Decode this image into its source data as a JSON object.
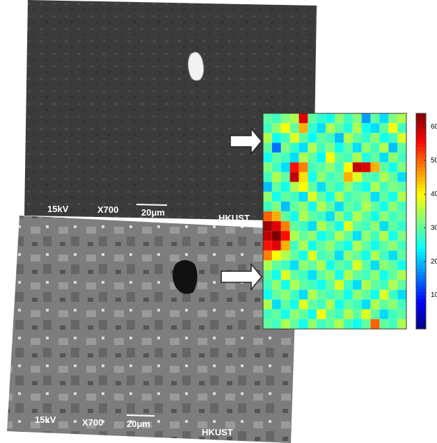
{
  "top_image": {
    "voltage": "15kV",
    "magnification": "X700",
    "scale_bar": "20μm",
    "institution": "HKUST"
  },
  "bottom_image": {
    "voltage": "15kV",
    "magnification": "X700",
    "scale_bar": "20μm",
    "institution": "HKUST"
  },
  "heatmap": {
    "colormap": "jet",
    "vlim": [
      0,
      64
    ],
    "colorbar_ticks": [
      10,
      20,
      30,
      40,
      50,
      60
    ],
    "rows": [
      [
        30,
        28,
        32,
        35,
        58,
        30,
        27,
        25,
        33,
        28,
        32,
        18,
        30,
        22,
        32,
        35
      ],
      [
        28,
        33,
        40,
        30,
        45,
        27,
        22,
        35,
        30,
        26,
        35,
        25,
        22,
        30,
        40,
        28
      ],
      [
        35,
        25,
        28,
        38,
        30,
        24,
        30,
        28,
        20,
        35,
        30,
        27,
        33,
        25,
        28,
        38
      ],
      [
        30,
        15,
        32,
        27,
        22,
        35,
        28,
        32,
        25,
        30,
        22,
        33,
        28,
        35,
        20,
        30
      ],
      [
        25,
        30,
        28,
        22,
        35,
        30,
        24,
        40,
        30,
        28,
        35,
        26,
        30,
        22,
        33,
        28
      ],
      [
        32,
        28,
        22,
        55,
        48,
        28,
        30,
        33,
        28,
        40,
        60,
        58,
        45,
        30,
        25,
        32
      ],
      [
        28,
        35,
        30,
        60,
        42,
        25,
        33,
        28,
        30,
        45,
        38,
        30,
        28,
        35,
        30,
        22
      ],
      [
        20,
        30,
        25,
        35,
        40,
        30,
        22,
        30,
        27,
        33,
        28,
        25,
        35,
        28,
        32,
        30
      ],
      [
        33,
        25,
        30,
        28,
        22,
        38,
        30,
        25,
        35,
        28,
        30,
        32,
        22,
        30,
        25,
        35
      ],
      [
        28,
        32,
        20,
        30,
        33,
        25,
        35,
        30,
        22,
        30,
        28,
        35,
        30,
        25,
        33,
        28
      ],
      [
        50,
        45,
        30,
        25,
        35,
        30,
        28,
        22,
        33,
        27,
        35,
        30,
        25,
        33,
        28,
        30
      ],
      [
        62,
        58,
        48,
        30,
        28,
        22,
        35,
        30,
        25,
        38,
        30,
        28,
        33,
        22,
        30,
        27
      ],
      [
        60,
        64,
        55,
        35,
        30,
        33,
        25,
        28,
        35,
        30,
        22,
        33,
        28,
        35,
        25,
        32
      ],
      [
        55,
        58,
        45,
        28,
        35,
        25,
        30,
        33,
        28,
        25,
        35,
        30,
        25,
        30,
        33,
        28
      ],
      [
        48,
        40,
        35,
        30,
        25,
        38,
        28,
        30,
        22,
        33,
        30,
        25,
        35,
        28,
        22,
        30
      ],
      [
        35,
        30,
        28,
        22,
        33,
        30,
        35,
        25,
        30,
        28,
        38,
        30,
        22,
        33,
        30,
        25
      ],
      [
        30,
        25,
        38,
        30,
        28,
        22,
        30,
        33,
        25,
        35,
        30,
        28,
        33,
        25,
        30,
        35
      ],
      [
        28,
        33,
        25,
        35,
        30,
        28,
        25,
        30,
        38,
        28,
        22,
        35,
        30,
        28,
        35,
        30
      ],
      [
        25,
        30,
        33,
        28,
        22,
        35,
        30,
        28,
        30,
        25,
        33,
        30,
        25,
        38,
        28,
        22
      ],
      [
        35,
        22,
        30,
        25,
        38,
        30,
        28,
        35,
        25,
        30,
        28,
        22,
        35,
        30,
        33,
        28
      ],
      [
        28,
        30,
        25,
        33,
        30,
        25,
        40,
        30,
        28,
        35,
        30,
        38,
        30,
        22,
        28,
        30
      ],
      [
        30,
        28,
        35,
        30,
        25,
        33,
        28,
        30,
        35,
        28,
        25,
        30,
        50,
        30,
        28,
        35
      ]
    ]
  }
}
